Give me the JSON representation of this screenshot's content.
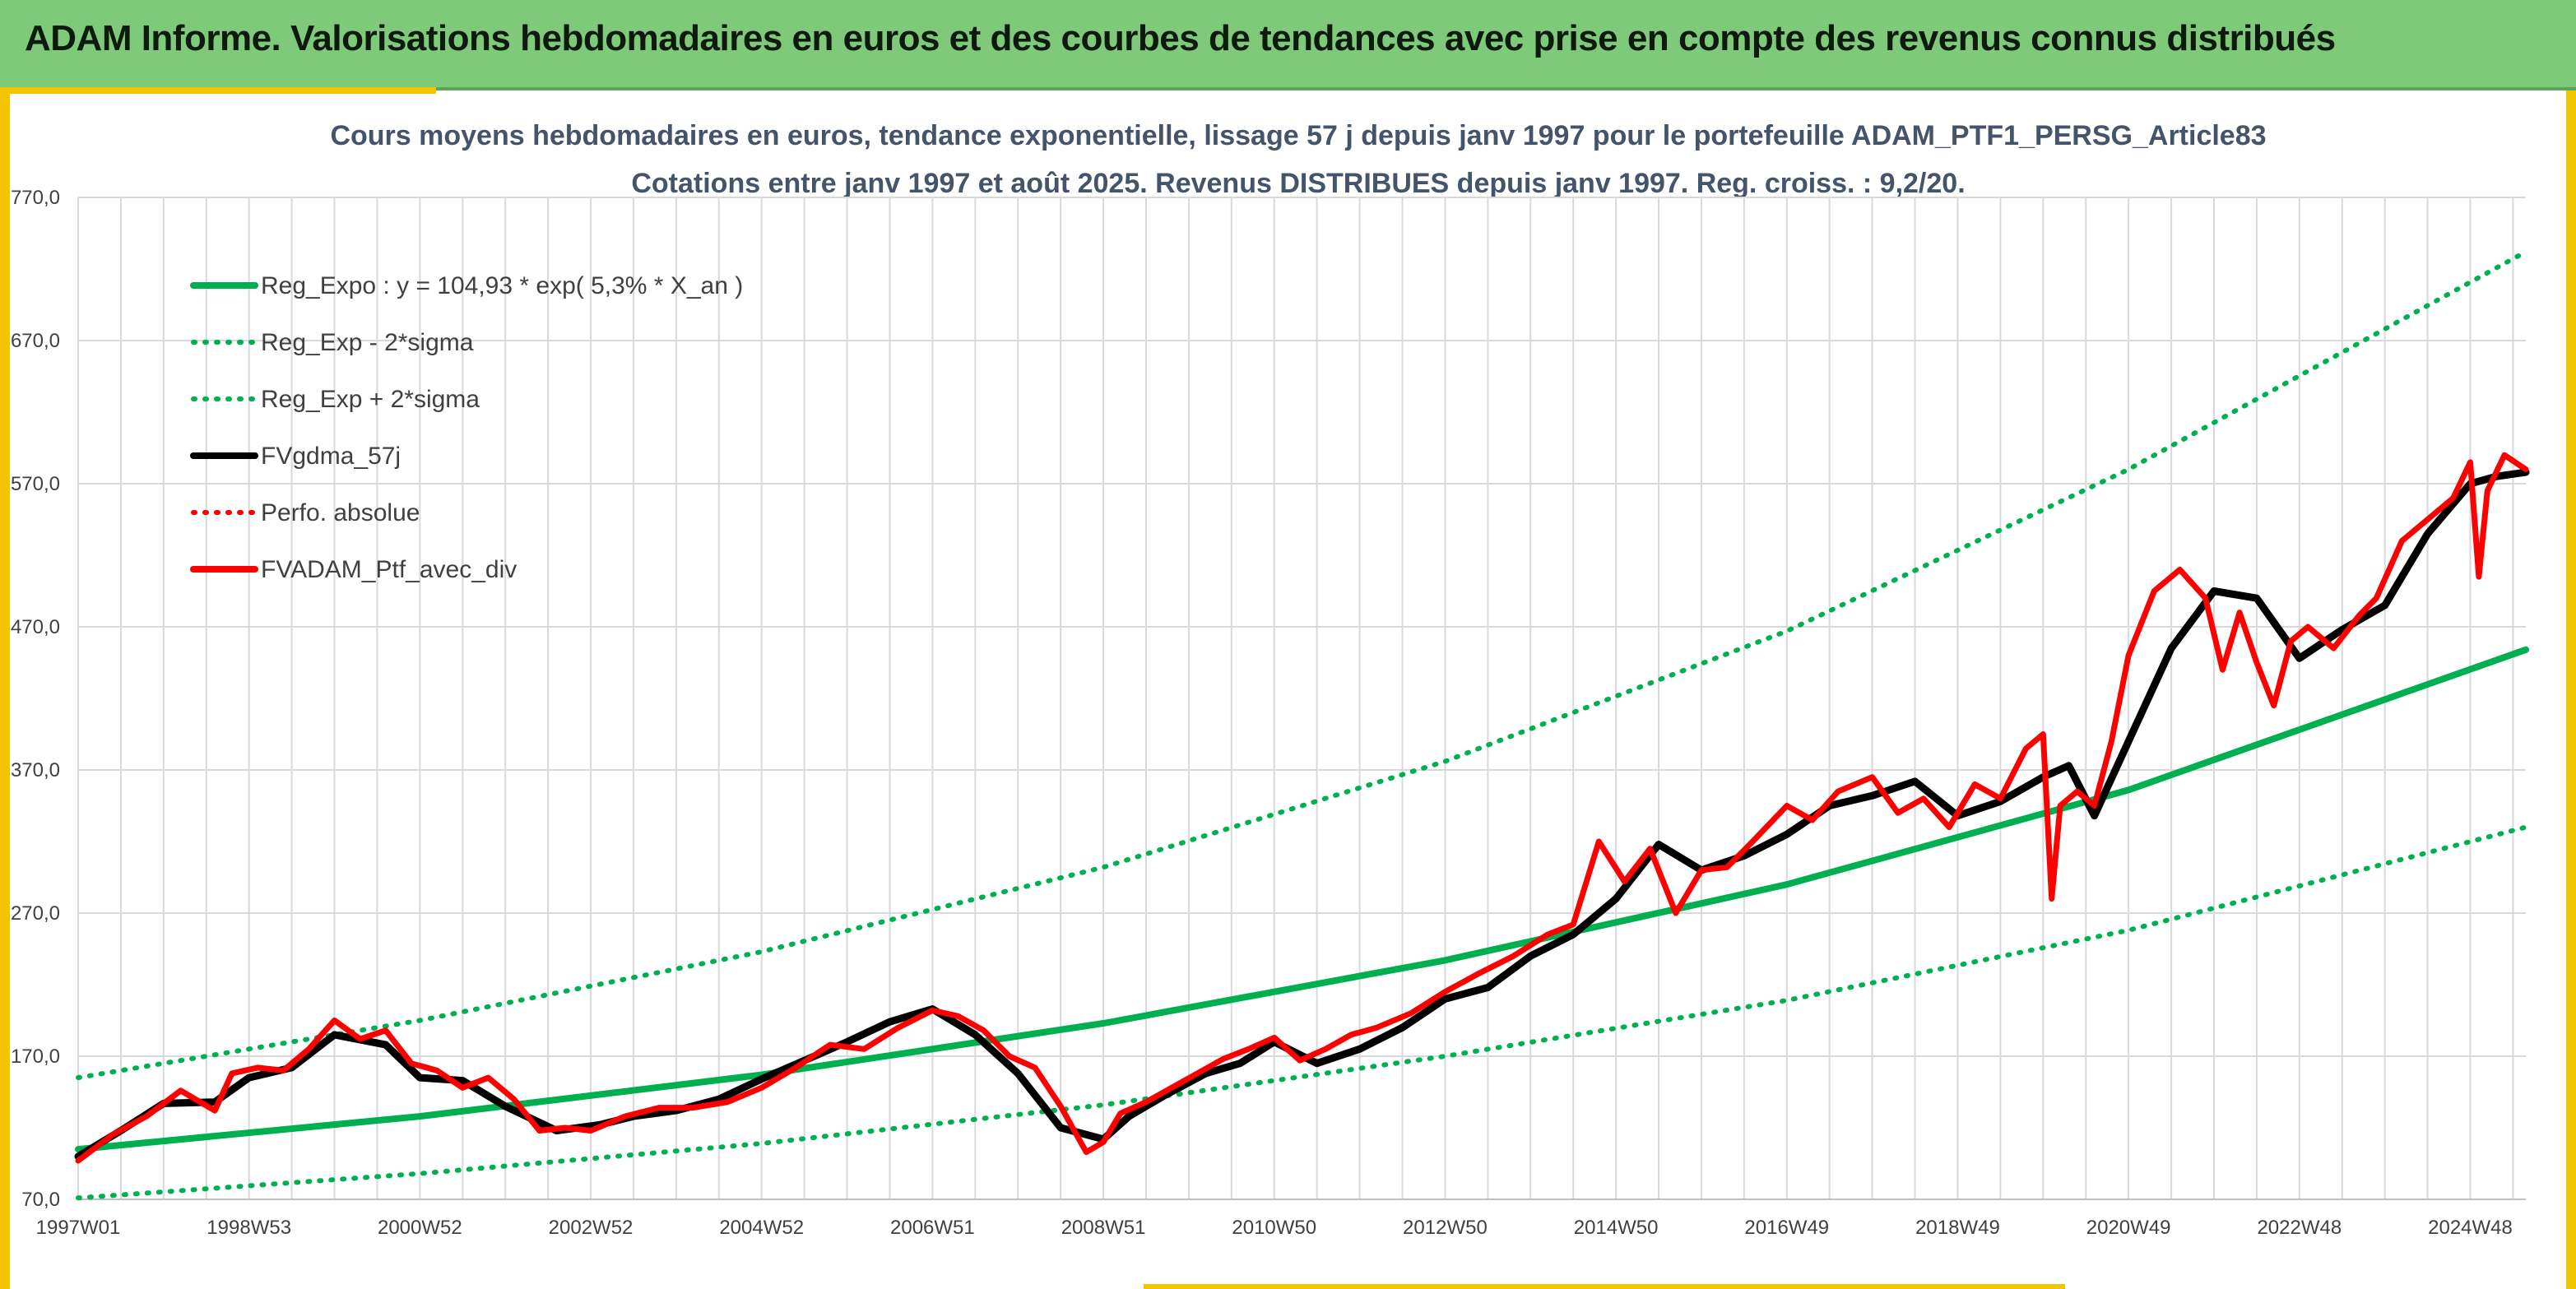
{
  "banner": {
    "title": "ADAM Informe. Valorisations hebdomadaires en euros et des courbes de tendances avec prise en compte des revenus connus distribués"
  },
  "colors": {
    "banner_bg": "#7fc97a",
    "frame": "#f2c500",
    "trend": "#00b050",
    "smooth": "#000000",
    "portfolio": "#ff0000",
    "title": "#44546a"
  },
  "chart_data": {
    "type": "line",
    "title": "Cours moyens hebdomadaires en euros, tendance exponentielle, lissage 57 j depuis janv 1997 pour le portefeuille ADAM_PTF1_PERSG_Article83",
    "subtitle": "Cotations entre janv 1997 et août 2025. Revenus DISTRIBUES depuis janv 1997. Reg. croiss. : 9,2/20.",
    "xlabel": "",
    "ylabel": "",
    "ylim": [
      70,
      770
    ],
    "yticks": [
      "70,0",
      "170,0",
      "270,0",
      "370,0",
      "470,0",
      "570,0",
      "670,0",
      "770,0"
    ],
    "xticks": [
      "1997W01",
      "1998W53",
      "2000W52",
      "2002W52",
      "2004W52",
      "2006W51",
      "2008W51",
      "2010W50",
      "2012W50",
      "2014W50",
      "2016W49",
      "2018W49",
      "2020W49",
      "2022W48",
      "2024W48"
    ],
    "xtick_years": [
      1997.0,
      1999.0,
      2001.0,
      2003.0,
      2005.0,
      2007.0,
      2009.0,
      2011.0,
      2013.0,
      2015.0,
      2017.0,
      2019.0,
      2021.0,
      2023.0,
      2025.0
    ],
    "xlim_years": [
      1997.0,
      2025.65
    ],
    "grid": true,
    "legend_position": "top-left",
    "series": [
      {
        "name": "Reg_Expo : y = 104,93 * exp( 5,3% *  X_an )",
        "color": "#00b050",
        "style": "solid",
        "x": [
          1997,
          2001,
          2005,
          2009,
          2013,
          2017,
          2021,
          2025.65
        ],
        "values": [
          105,
          128,
          157,
          193,
          237,
          290,
          356,
          454
        ]
      },
      {
        "name": "Reg_Exp - 2*sigma",
        "color": "#00b050",
        "style": "dotted",
        "x": [
          1997,
          2001,
          2005,
          2009,
          2013,
          2017,
          2021,
          2025.65
        ],
        "values": [
          71,
          88,
          109,
          136,
          170,
          209,
          258,
          330
        ]
      },
      {
        "name": "Reg_Exp + 2*sigma",
        "color": "#00b050",
        "style": "dotted",
        "x": [
          1997,
          2001,
          2005,
          2009,
          2013,
          2017,
          2021,
          2025.65
        ],
        "values": [
          155,
          195,
          243,
          302,
          376,
          467,
          580,
          732
        ]
      },
      {
        "name": "FVgdma_57j",
        "color": "#000000",
        "style": "solid",
        "x": [
          1997.0,
          1997.5,
          1998.0,
          1998.6,
          1999.0,
          1999.5,
          2000.0,
          2000.6,
          2001.0,
          2001.5,
          2002.0,
          2002.6,
          2003.1,
          2003.5,
          2004.0,
          2004.5,
          2005.0,
          2005.5,
          2006.0,
          2006.5,
          2007.0,
          2007.5,
          2008.0,
          2008.5,
          2009.0,
          2009.3,
          2009.7,
          2010.2,
          2010.6,
          2011.0,
          2011.5,
          2012.0,
          2012.5,
          2013.0,
          2013.5,
          2014.0,
          2014.5,
          2015.0,
          2015.5,
          2016.0,
          2016.5,
          2017.0,
          2017.5,
          2018.0,
          2018.5,
          2019.0,
          2019.5,
          2020.0,
          2020.3,
          2020.6,
          2021.0,
          2021.5,
          2022.0,
          2022.5,
          2023.0,
          2023.5,
          2024.0,
          2024.5,
          2025.0,
          2025.3,
          2025.65
        ],
        "values": [
          100,
          118,
          137,
          138,
          155,
          162,
          185,
          178,
          155,
          153,
          135,
          118,
          122,
          128,
          132,
          140,
          154,
          167,
          180,
          194,
          203,
          185,
          158,
          120,
          112,
          128,
          142,
          158,
          165,
          180,
          165,
          175,
          190,
          210,
          218,
          240,
          255,
          280,
          318,
          300,
          310,
          325,
          345,
          352,
          362,
          338,
          348,
          365,
          373,
          338,
          390,
          455,
          495,
          490,
          448,
          468,
          485,
          535,
          570,
          575,
          578
        ]
      },
      {
        "name": "Perfo. absolue",
        "color": "#ff0000",
        "style": "dotted",
        "x": [],
        "values": []
      },
      {
        "name": "FVADAM_Ptf_avec_div",
        "color": "#ff0000",
        "style": "solid",
        "x": [
          1997.0,
          1997.4,
          1997.8,
          1998.2,
          1998.6,
          1998.8,
          1999.1,
          1999.4,
          1999.7,
          2000.0,
          2000.3,
          2000.6,
          2000.9,
          2001.2,
          2001.5,
          2001.8,
          2002.1,
          2002.4,
          2002.7,
          2003.0,
          2003.4,
          2003.8,
          2004.2,
          2004.6,
          2005.0,
          2005.4,
          2005.8,
          2006.2,
          2006.6,
          2007.0,
          2007.3,
          2007.6,
          2007.9,
          2008.2,
          2008.5,
          2008.8,
          2009.0,
          2009.2,
          2009.5,
          2009.8,
          2010.1,
          2010.4,
          2010.7,
          2011.0,
          2011.3,
          2011.6,
          2011.9,
          2012.2,
          2012.6,
          2013.0,
          2013.4,
          2013.8,
          2014.2,
          2014.5,
          2014.8,
          2015.1,
          2015.4,
          2015.7,
          2016.0,
          2016.3,
          2016.6,
          2017.0,
          2017.3,
          2017.6,
          2018.0,
          2018.3,
          2018.6,
          2018.9,
          2019.2,
          2019.5,
          2019.8,
          2020.0,
          2020.1,
          2020.2,
          2020.4,
          2020.6,
          2020.8,
          2021.0,
          2021.3,
          2021.6,
          2021.9,
          2022.1,
          2022.3,
          2022.5,
          2022.7,
          2022.9,
          2023.1,
          2023.4,
          2023.7,
          2023.9,
          2024.2,
          2024.5,
          2024.8,
          2025.0,
          2025.1,
          2025.2,
          2025.4,
          2025.65
        ],
        "values": [
          97,
          115,
          128,
          146,
          132,
          158,
          162,
          160,
          175,
          195,
          182,
          188,
          165,
          160,
          148,
          155,
          140,
          118,
          120,
          118,
          128,
          134,
          134,
          138,
          148,
          162,
          178,
          175,
          190,
          202,
          198,
          188,
          170,
          162,
          135,
          103,
          110,
          130,
          138,
          148,
          158,
          168,
          175,
          183,
          167,
          175,
          185,
          190,
          200,
          215,
          228,
          240,
          255,
          262,
          320,
          292,
          315,
          270,
          300,
          302,
          320,
          345,
          335,
          355,
          365,
          340,
          350,
          330,
          360,
          350,
          385,
          395,
          280,
          345,
          355,
          345,
          390,
          450,
          495,
          510,
          490,
          440,
          480,
          445,
          415,
          460,
          470,
          455,
          478,
          490,
          530,
          545,
          560,
          585,
          505,
          565,
          590,
          580
        ]
      }
    ]
  }
}
